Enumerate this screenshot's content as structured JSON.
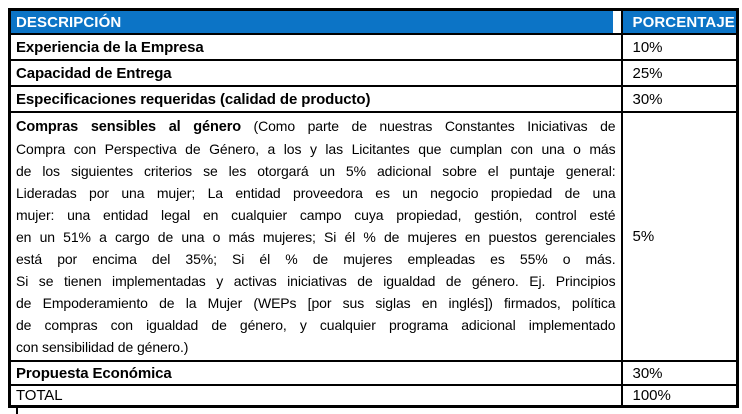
{
  "document": {
    "table": {
      "columns": {
        "description": "DESCRIPCIÓN",
        "percentage": "PORCENTAJE"
      },
      "rows": [
        {
          "description": "Experiencia de la Empresa",
          "percentage": "10%"
        },
        {
          "description": "Capacidad de Entrega",
          "percentage": "25%"
        },
        {
          "description": "Especificaciones requeridas (calidad de producto)",
          "percentage": "30%"
        },
        {
          "description_lead": "Compras sensibles al género",
          "description_lines": [
            " (Como parte de nuestras Constantes Iniciativas de",
            "Compra con Perspectiva de Género, a los y las Licitantes que cumplan con una o más",
            "de los siguientes criterios se les otorgará un 5% adicional sobre el puntaje general:",
            "Lideradas por una mujer; La entidad proveedora es un negocio propiedad de una",
            "mujer: una entidad legal en cualquier campo cuya propiedad, gestión, control esté",
            "en un 51% a cargo de una o más mujeres; Si él % de mujeres en puestos gerenciales",
            "está por encima del 35%; Si él % de mujeres empleadas es 55% o más.",
            "Si se tienen implementadas y activas iniciativas de igualdad de género. Ej. Principios",
            "de Empoderamiento de la Mujer (WEPs [por sus siglas en inglés]) firmados, política",
            "de compras con igualdad de género, y cualquier programa adicional implementado",
            "con sensibilidad de género.)"
          ],
          "percentage": "5%"
        },
        {
          "description": "Propuesta Económica",
          "percentage": "30%"
        },
        {
          "description": "TOTAL",
          "percentage": "100%"
        }
      ]
    },
    "colors": {
      "header_bg": "#0C74C6",
      "header_text": "#FFFFFF",
      "border": "#000000",
      "page_bg": "#FFFFFF"
    }
  }
}
